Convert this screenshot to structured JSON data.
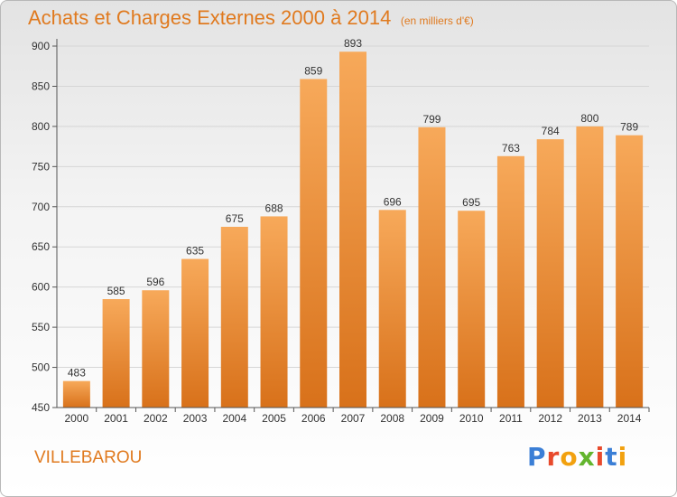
{
  "chart": {
    "title": "Achats et Charges Externes 2000 à 2014",
    "subtitle": "(en milliers d'€)",
    "commune": "VILLEBAROU",
    "logo": [
      "P",
      "r",
      "o",
      "x",
      "i",
      "t",
      "i"
    ]
  },
  "colors": {
    "bar_top": "#f7a95a",
    "bar_bottom": "#d8711a",
    "title": "#e07a1f",
    "grid": "#d6d6d6",
    "axis": "#555555",
    "logo": [
      "#3b7fd6",
      "#e84a2c",
      "#f2a10f",
      "#63b52e",
      "#e84a2c",
      "#3b7fd6",
      "#f2a10f"
    ]
  },
  "chart_data": {
    "type": "bar",
    "title": "Achats et Charges Externes 2000 à 2014",
    "subtitle": "(en milliers d'€)",
    "categories": [
      "2000",
      "2001",
      "2002",
      "2003",
      "2004",
      "2005",
      "2006",
      "2007",
      "2008",
      "2009",
      "2010",
      "2011",
      "2012",
      "2013",
      "2014"
    ],
    "values": [
      483,
      585,
      596,
      635,
      675,
      688,
      859,
      893,
      696,
      799,
      695,
      763,
      784,
      800,
      789
    ],
    "ylim": [
      450,
      900
    ],
    "yticks": [
      450,
      500,
      550,
      600,
      650,
      700,
      750,
      800,
      850,
      900
    ],
    "grid": true
  }
}
